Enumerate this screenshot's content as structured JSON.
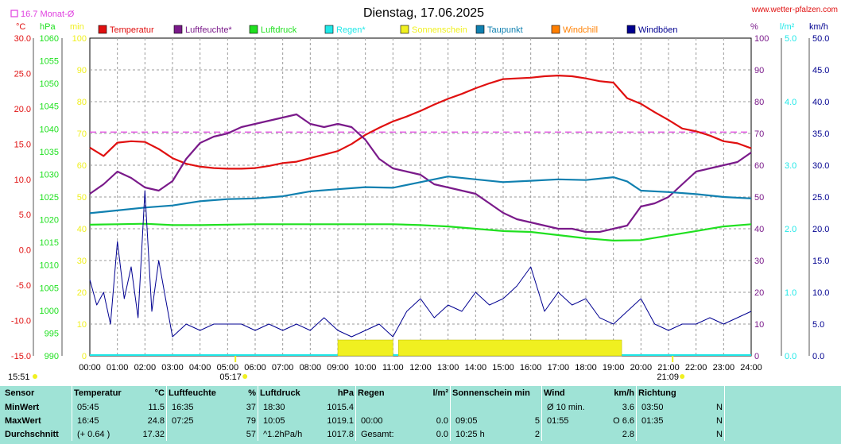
{
  "header": {
    "title": "Dienstag, 17.06.2025",
    "site": "www.wetter-pfalzen.com",
    "monthly_avg_label": "16.7 Monat-Ø"
  },
  "colors": {
    "temperature": "#e01010",
    "humidity": "#7a1a8a",
    "pressure": "#20e020",
    "rain": "#20e8e8",
    "sunshine": "#f0f020",
    "dewpoint": "#1080b0",
    "windchill": "#ff7f00",
    "gust": "#000090",
    "monthly_avg": "#e040e0"
  },
  "chart_data": {
    "type": "line",
    "x_labels": [
      "00:00",
      "01:00",
      "02:00",
      "03:00",
      "04:00",
      "05:00",
      "06:00",
      "07:00",
      "08:00",
      "09:00",
      "10:00",
      "11:00",
      "12:00",
      "13:00",
      "14:00",
      "15:00",
      "16:00",
      "17:00",
      "18:00",
      "19:00",
      "20:00",
      "21:00",
      "22:00",
      "23:00",
      "24:00"
    ],
    "axes": {
      "temperature": {
        "unit": "°C",
        "min": -15,
        "max": 30,
        "ticks": [
          "30.0",
          "25.0",
          "20.0",
          "15.0",
          "10.0",
          "5.0",
          "0.0",
          "-5.0",
          "-10.0",
          "-15.0"
        ]
      },
      "pressure": {
        "unit": "hPa",
        "min": 990,
        "max": 1060,
        "ticks": [
          "1060",
          "1055",
          "1050",
          "1045",
          "1040",
          "1035",
          "1030",
          "1025",
          "1020",
          "1015",
          "1010",
          "1005",
          "1000",
          "995",
          "990"
        ]
      },
      "minutes": {
        "unit": "min",
        "min": 0,
        "max": 100,
        "ticks": [
          "100",
          "90",
          "80",
          "70",
          "60",
          "50",
          "40",
          "30",
          "20",
          "10",
          "0"
        ]
      },
      "percent": {
        "unit": "%",
        "min": 0,
        "max": 100,
        "ticks": [
          "100",
          "90",
          "80",
          "70",
          "60",
          "50",
          "40",
          "30",
          "20",
          "10",
          "0"
        ]
      },
      "rain_rate": {
        "unit": "l/m²",
        "min": 0,
        "max": 5,
        "ticks": [
          "5.0",
          "4.0",
          "3.0",
          "2.0",
          "1.0",
          "0.0"
        ]
      },
      "wind": {
        "unit": "km/h",
        "min": 0,
        "max": 50,
        "ticks": [
          "50.0",
          "45.0",
          "40.0",
          "35.0",
          "30.0",
          "25.0",
          "20.0",
          "15.0",
          "10.0",
          "5.0",
          "0.0"
        ]
      }
    },
    "monthly_avg_temp": 16.7,
    "legend": [
      "Temperatur",
      "Luftfeuchte*",
      "Luftdruck",
      "Regen*",
      "Sonnenschein",
      "Taupunkt",
      "Windchill",
      "Windböen"
    ],
    "series": [
      {
        "name": "Temperatur",
        "axis": "temperature",
        "x": [
          0,
          0.5,
          1,
          1.5,
          2,
          2.5,
          3,
          3.5,
          4,
          4.5,
          5,
          5.5,
          6,
          6.5,
          7,
          7.5,
          8,
          8.5,
          9,
          9.5,
          10,
          10.5,
          11,
          11.5,
          12,
          12.5,
          13,
          13.5,
          14,
          14.5,
          15,
          15.5,
          16,
          16.5,
          17,
          17.5,
          18,
          18.5,
          19,
          19.5,
          20,
          20.5,
          21,
          21.5,
          22,
          22.5,
          23,
          23.5,
          24
        ],
        "values": [
          14.5,
          13.3,
          15.2,
          15.4,
          15.3,
          14.3,
          13.0,
          12.2,
          11.8,
          11.6,
          11.5,
          11.5,
          11.6,
          11.9,
          12.3,
          12.5,
          13.0,
          13.5,
          14.0,
          15.0,
          16.3,
          17.3,
          18.2,
          18.9,
          19.7,
          20.6,
          21.4,
          22.1,
          22.9,
          23.6,
          24.2,
          24.3,
          24.4,
          24.6,
          24.7,
          24.6,
          24.3,
          23.9,
          23.7,
          21.5,
          20.7,
          19.5,
          18.4,
          17.2,
          16.8,
          16.2,
          15.4,
          15.1,
          14.4
        ]
      },
      {
        "name": "Luftfeuchte*",
        "axis": "percent",
        "x": [
          0,
          0.5,
          1,
          1.5,
          2,
          2.5,
          3,
          3.5,
          4,
          4.5,
          5,
          5.5,
          6,
          6.5,
          7,
          7.5,
          8,
          8.5,
          9,
          9.5,
          10,
          10.5,
          11,
          11.5,
          12,
          12.5,
          13,
          13.5,
          14,
          14.5,
          15,
          15.5,
          16,
          16.5,
          17,
          17.5,
          18,
          18.5,
          19,
          19.5,
          20,
          20.5,
          21,
          21.5,
          22,
          22.5,
          23,
          23.5,
          24
        ],
        "values": [
          51,
          54,
          58,
          56,
          53,
          52,
          55,
          62,
          67,
          69,
          70,
          72,
          73,
          74,
          75,
          76,
          73,
          72,
          73,
          72,
          68,
          62,
          59,
          58,
          57,
          54,
          53,
          52,
          51,
          48,
          45,
          43,
          42,
          41,
          40,
          40,
          39,
          39,
          40,
          41,
          47,
          48,
          50,
          54,
          58,
          59,
          60,
          61,
          64
        ]
      },
      {
        "name": "Luftdruck",
        "axis": "pressure",
        "x": [
          0,
          1,
          2,
          3,
          4,
          5,
          6,
          7,
          8,
          9,
          10,
          11,
          12,
          13,
          14,
          15,
          16,
          17,
          18,
          19,
          20,
          21,
          22,
          23,
          24
        ],
        "values": [
          1018.9,
          1019.0,
          1019.1,
          1018.8,
          1018.8,
          1018.9,
          1019.0,
          1019.0,
          1019.0,
          1019.0,
          1019.0,
          1019.0,
          1018.8,
          1018.5,
          1018.0,
          1017.5,
          1017.3,
          1016.6,
          1015.9,
          1015.4,
          1015.5,
          1016.5,
          1017.5,
          1018.5,
          1019.0
        ]
      },
      {
        "name": "Taupunkt",
        "axis": "temperature",
        "x": [
          0,
          1,
          2,
          3,
          4,
          5,
          6,
          7,
          8,
          9,
          10,
          11,
          12,
          13,
          14,
          15,
          16,
          17,
          18,
          19,
          19.5,
          20,
          21,
          22,
          23,
          24
        ],
        "values": [
          5.2,
          5.6,
          6.0,
          6.3,
          6.9,
          7.2,
          7.3,
          7.6,
          8.3,
          8.6,
          8.9,
          8.8,
          9.6,
          10.4,
          10.0,
          9.6,
          9.8,
          10.0,
          9.9,
          10.3,
          9.7,
          8.4,
          8.2,
          7.9,
          7.5,
          7.3
        ]
      },
      {
        "name": "Windböen",
        "axis": "wind",
        "x": [
          0,
          0.25,
          0.5,
          0.75,
          1,
          1.25,
          1.5,
          1.75,
          2,
          2.25,
          2.5,
          2.75,
          3,
          3.5,
          4,
          4.5,
          5,
          5.5,
          6,
          6.5,
          7,
          7.5,
          8,
          8.5,
          9,
          9.5,
          10,
          10.5,
          11,
          11.5,
          12,
          12.5,
          13,
          13.5,
          14,
          14.5,
          15,
          15.5,
          16,
          16.5,
          17,
          17.5,
          18,
          18.5,
          19,
          19.5,
          20,
          20.5,
          21,
          21.5,
          22,
          22.5,
          23,
          23.5,
          24
        ],
        "values": [
          12.0,
          8.0,
          10.0,
          5.0,
          18.0,
          9.0,
          14.0,
          6.0,
          26.0,
          7.0,
          15.0,
          9.0,
          3.0,
          5.0,
          4.0,
          5.0,
          5.0,
          5.0,
          4.0,
          5.0,
          4.0,
          5.0,
          4.0,
          6.0,
          4.0,
          3.0,
          4.0,
          5.0,
          3.0,
          7.0,
          9.0,
          6.0,
          8.0,
          7.0,
          10.0,
          8.0,
          9.0,
          11.0,
          14.0,
          7.0,
          10.0,
          8.0,
          9.0,
          6.0,
          5.0,
          7.0,
          9.0,
          5.0,
          4.0,
          5.0,
          5.0,
          6.0,
          5.0,
          6.0,
          7.0
        ]
      },
      {
        "name": "Sonnenschein",
        "axis": "minutes",
        "x": [
          9,
          11,
          11.2,
          19.3
        ],
        "values": [
          5,
          5,
          5,
          5
        ]
      }
    ],
    "bottom_markers": {
      "sunrise": "05:17",
      "sunset": "21:09",
      "current": "15:51"
    }
  },
  "stats": {
    "headers": {
      "sensor": "Sensor",
      "temp": "Temperatur",
      "temp_unit": "°C",
      "hum": "Luftfeuchte",
      "hum_unit": "%",
      "press": "Luftdruck",
      "press_unit": "hPa",
      "rain": "Regen",
      "rain_unit": "l/m²",
      "sun": "Sonnenschein min",
      "wind": "Wind",
      "wind_unit": "km/h",
      "dir": "Richtung"
    },
    "rows": [
      {
        "label": "MinWert",
        "temp_time": "05:45",
        "temp": "11.5",
        "hum_time": "16:35",
        "hum": "37",
        "press_time": "18:30",
        "press": "1015.4",
        "rain_time": "",
        "rain": "",
        "sun_time": "",
        "sun": "",
        "wind_time": "Ø 10 min.",
        "wind": "3.6",
        "dir_time": "03:50",
        "dir": "N"
      },
      {
        "label": "MaxWert",
        "temp_time": "16:45",
        "temp": "24.8",
        "hum_time": "07:25",
        "hum": "79",
        "press_time": "10:05",
        "press": "1019.1",
        "rain_time": "00:00",
        "rain": "0.0",
        "sun_time": "09:05",
        "sun": "5",
        "wind_time": "01:55",
        "wind": "O 6.6",
        "dir_time": "01:35",
        "dir": "N"
      },
      {
        "label": "Durchschnitt",
        "temp_time": "(+ 0.64 )",
        "temp": "17.32",
        "hum_time": "",
        "hum": "57",
        "press_time": "^1.2hPa/h",
        "press": "1017.8",
        "rain_time": "Gesamt:",
        "rain": "0.0",
        "sun_time": "10:25 h",
        "sun": "2",
        "wind_time": "",
        "wind": "2.8",
        "dir_time": "",
        "dir": "N"
      }
    ]
  }
}
